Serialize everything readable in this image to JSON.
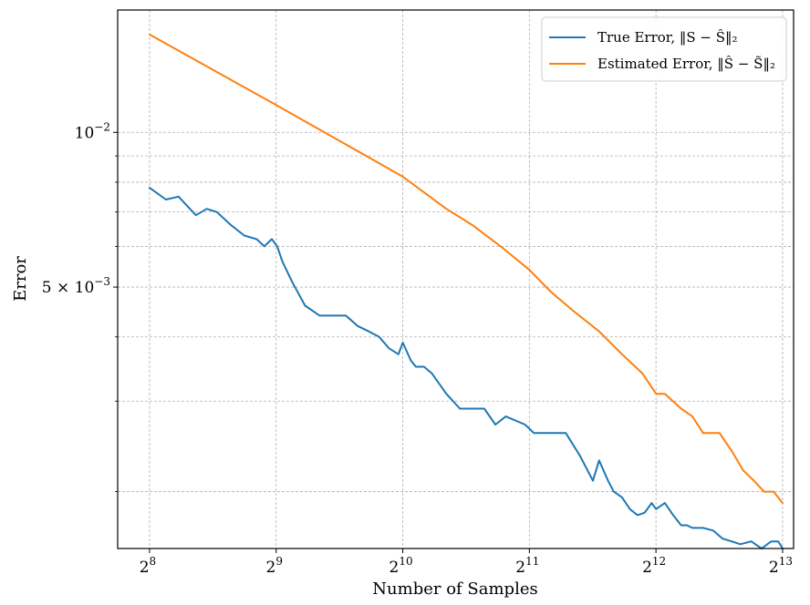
{
  "chart_data": {
    "type": "line",
    "xlabel": "Number of Samples",
    "ylabel": "Error",
    "xscale": "log2",
    "yscale": "log",
    "xlim": [
      215,
      8700
    ],
    "ylim": [
      0.00155,
      0.0173
    ],
    "grid": true,
    "legend_position": "top-right",
    "x_ticks": [
      {
        "base": "2",
        "exp": "8",
        "value": 256
      },
      {
        "base": "2",
        "exp": "9",
        "value": 512
      },
      {
        "base": "2",
        "exp": "10",
        "value": 1024
      },
      {
        "base": "2",
        "exp": "11",
        "value": 2048
      },
      {
        "base": "2",
        "exp": "12",
        "value": 4096
      },
      {
        "base": "2",
        "exp": "13",
        "value": 8192
      }
    ],
    "y_ticks": [
      {
        "base": "10",
        "exp": "−2",
        "value": 0.01
      },
      {
        "base": "5 × 10",
        "exp": "−3",
        "value": 0.005
      }
    ],
    "y_minor_ticks": [
      0.002,
      0.003,
      0.004,
      0.006,
      0.007,
      0.008,
      0.009
    ],
    "series": [
      {
        "name": "True Error, ‖S − Ŝ‖₂",
        "color": "#1f77b4",
        "x": [
          256,
          280,
          300,
          330,
          350,
          370,
          400,
          430,
          460,
          480,
          500,
          515,
          530,
          560,
          600,
          650,
          700,
          750,
          800,
          850,
          900,
          950,
          1000,
          1024,
          1070,
          1100,
          1150,
          1200,
          1300,
          1400,
          1500,
          1600,
          1700,
          1800,
          2000,
          2100,
          2250,
          2400,
          2500,
          2700,
          2900,
          3000,
          3150,
          3250,
          3400,
          3550,
          3700,
          3850,
          4000,
          4100,
          4300,
          4500,
          4700,
          4850,
          5000,
          5300,
          5600,
          5900,
          6200,
          6500,
          6900,
          7300,
          7700,
          8000,
          8192
        ],
        "values": [
          0.0078,
          0.0074,
          0.0075,
          0.0069,
          0.0071,
          0.007,
          0.0066,
          0.0063,
          0.0062,
          0.006,
          0.0062,
          0.006,
          0.0056,
          0.0051,
          0.0046,
          0.0044,
          0.0044,
          0.0044,
          0.0042,
          0.0041,
          0.004,
          0.0038,
          0.0037,
          0.0039,
          0.0036,
          0.0035,
          0.0035,
          0.0034,
          0.0031,
          0.0029,
          0.0029,
          0.0029,
          0.0027,
          0.0028,
          0.0027,
          0.0026,
          0.0026,
          0.0026,
          0.0026,
          0.00235,
          0.0021,
          0.0023,
          0.0021,
          0.002,
          0.00195,
          0.00185,
          0.0018,
          0.00182,
          0.0019,
          0.00185,
          0.0019,
          0.0018,
          0.00172,
          0.00172,
          0.0017,
          0.0017,
          0.00168,
          0.00162,
          0.0016,
          0.00158,
          0.0016,
          0.00155,
          0.0016,
          0.0016,
          0.00155
        ]
      },
      {
        "name": "Estimated Error, ‖Ŝ − S̃‖₂",
        "color": "#ff7f0e",
        "x": [
          256,
          512,
          1024,
          1300,
          1500,
          1750,
          2048,
          2300,
          2600,
          3000,
          3400,
          3800,
          4100,
          4300,
          4700,
          5000,
          5300,
          5800,
          6200,
          6600,
          7000,
          7400,
          7800,
          8192
        ],
        "values": [
          0.0155,
          0.0113,
          0.0082,
          0.0071,
          0.0066,
          0.006,
          0.0054,
          0.0049,
          0.0045,
          0.0041,
          0.0037,
          0.0034,
          0.0031,
          0.0031,
          0.0029,
          0.0028,
          0.0026,
          0.0026,
          0.0024,
          0.0022,
          0.0021,
          0.002,
          0.002,
          0.0019
        ]
      }
    ]
  }
}
